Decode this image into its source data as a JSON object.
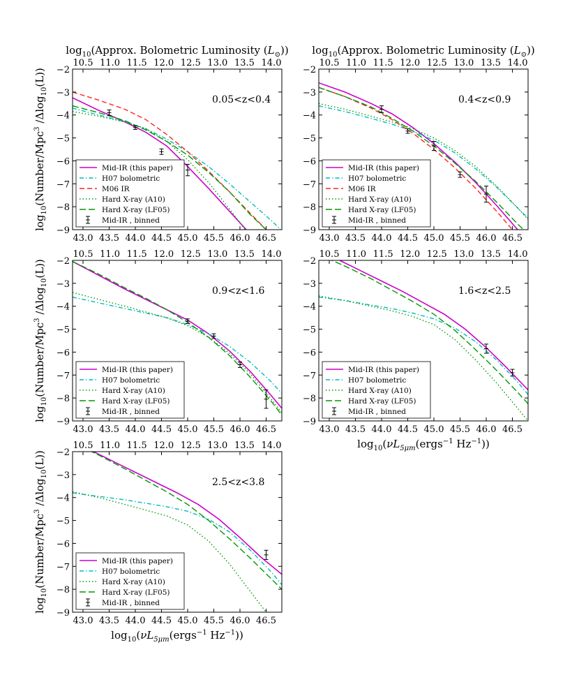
{
  "figure": {
    "top_axis_label": "log10(Approx. Bolometric Luminosity (L⊙))",
    "y_axis_label": "log10(Number/Mpc³ /Δlog10(L))",
    "bottom_axis_label": "log10(νL5μm(ergs⁻¹ Hz⁻¹))"
  },
  "chart_data": [
    {
      "type": "line",
      "panel": "0.05<z<0.4",
      "title": "0.05<z<0.4",
      "xlim": [
        42.8,
        46.8
      ],
      "ylim": [
        -9,
        -2
      ],
      "xticks": [
        43.0,
        43.5,
        44.0,
        44.5,
        45.0,
        45.5,
        46.0,
        46.5
      ],
      "yticks": [
        -2,
        -3,
        -4,
        -5,
        -6,
        -7,
        -8,
        -9
      ],
      "top_ticks": [
        10.5,
        11.0,
        11.5,
        12.0,
        12.5,
        13.0,
        13.5,
        14.0
      ],
      "legend": "lower-left",
      "series": [
        {
          "name": "Mid-IR (this paper)",
          "color": "#cc00cc",
          "style": "solid",
          "x": [
            42.8,
            43.3,
            43.8,
            44.2,
            44.6,
            45.0,
            45.4,
            45.8,
            46.2
          ],
          "y": [
            -3.25,
            -3.8,
            -4.3,
            -4.75,
            -5.35,
            -6.25,
            -7.2,
            -8.2,
            -9.2
          ]
        },
        {
          "name": "H07 bolometric",
          "color": "#00bbbb",
          "style": "dashdot",
          "x": [
            42.8,
            43.3,
            43.8,
            44.2,
            44.6,
            45.0,
            45.4,
            45.8,
            46.2,
            46.6,
            46.8
          ],
          "y": [
            -3.7,
            -4.0,
            -4.3,
            -4.6,
            -5.05,
            -5.6,
            -6.25,
            -7.0,
            -7.8,
            -8.6,
            -9.05
          ]
        },
        {
          "name": "M06 IR",
          "color": "#ff2222",
          "style": "dashed",
          "x": [
            42.8,
            43.3,
            43.8,
            44.2,
            44.6,
            45.0,
            45.4,
            45.8,
            46.2,
            46.5
          ],
          "y": [
            -3.0,
            -3.35,
            -3.75,
            -4.2,
            -4.85,
            -5.6,
            -6.45,
            -7.35,
            -8.3,
            -9.0
          ]
        },
        {
          "name": "Hard X-ray (A10)",
          "color": "#009900",
          "style": "dotted",
          "x": [
            42.8,
            43.3,
            43.8,
            44.2,
            44.6,
            45.0,
            45.4,
            45.8,
            46.1
          ],
          "y": [
            -3.85,
            -4.05,
            -4.3,
            -4.6,
            -5.15,
            -5.95,
            -6.95,
            -8.1,
            -9.0
          ]
        },
        {
          "name": "Hard X-ray (LF05)",
          "color": "#009900",
          "style": "longdash",
          "x": [
            42.8,
            43.3,
            43.8,
            44.2,
            44.6,
            45.0,
            45.4,
            45.8,
            46.2,
            46.5
          ],
          "y": [
            -3.6,
            -3.9,
            -4.25,
            -4.65,
            -5.15,
            -5.75,
            -6.5,
            -7.35,
            -8.35,
            -9.0
          ]
        },
        {
          "name": "Mid-IR , binned",
          "color": "#000000",
          "style": "errorbar",
          "x": [
            43.5,
            44.0,
            44.5,
            45.0
          ],
          "y": [
            -3.9,
            -4.55,
            -5.6,
            -6.4
          ],
          "err": [
            0.12,
            0.08,
            0.12,
            0.25
          ]
        }
      ]
    },
    {
      "type": "line",
      "panel": "0.4<z<0.9",
      "title": "0.4<z<0.9",
      "xlim": [
        42.8,
        46.8
      ],
      "ylim": [
        -9,
        -2
      ],
      "xticks": [
        43.0,
        43.5,
        44.0,
        44.5,
        45.0,
        45.5,
        46.0,
        46.5
      ],
      "yticks": [
        -2,
        -3,
        -4,
        -5,
        -6,
        -7,
        -8,
        -9
      ],
      "top_ticks": [
        10.5,
        11.0,
        11.5,
        12.0,
        12.5,
        13.0,
        13.5,
        14.0
      ],
      "legend": "lower-left",
      "series": [
        {
          "name": "Mid-IR (this paper)",
          "color": "#cc00cc",
          "style": "solid",
          "x": [
            42.8,
            43.3,
            43.8,
            44.2,
            44.6,
            45.0,
            45.4,
            45.8,
            46.2,
            46.6
          ],
          "y": [
            -2.6,
            -3.0,
            -3.5,
            -3.95,
            -4.55,
            -5.25,
            -6.05,
            -6.95,
            -7.95,
            -9.0
          ]
        },
        {
          "name": "H07 bolometric",
          "color": "#00bbbb",
          "style": "dashdot",
          "x": [
            42.8,
            43.3,
            43.8,
            44.2,
            44.6,
            45.0,
            45.4,
            45.8,
            46.2,
            46.6,
            46.8
          ],
          "y": [
            -3.6,
            -3.85,
            -4.15,
            -4.4,
            -4.7,
            -5.1,
            -5.65,
            -6.35,
            -7.15,
            -8.05,
            -8.5
          ]
        },
        {
          "name": "M06 IR",
          "color": "#ff2222",
          "style": "dashed",
          "x": [
            42.8,
            43.3,
            43.8,
            44.2,
            44.6,
            45.0,
            45.4,
            45.8,
            46.2,
            46.5
          ],
          "y": [
            -2.8,
            -3.2,
            -3.7,
            -4.2,
            -4.8,
            -5.5,
            -6.3,
            -7.2,
            -8.2,
            -9.0
          ]
        },
        {
          "name": "Hard X-ray (A10)",
          "color": "#009900",
          "style": "dotted",
          "x": [
            42.8,
            43.3,
            43.8,
            44.2,
            44.6,
            45.0,
            45.4,
            45.8,
            46.2,
            46.6,
            46.8
          ],
          "y": [
            -3.5,
            -3.75,
            -4.05,
            -4.3,
            -4.6,
            -5.0,
            -5.55,
            -6.25,
            -7.1,
            -8.05,
            -8.55
          ]
        },
        {
          "name": "Hard X-ray (LF05)",
          "color": "#009900",
          "style": "longdash",
          "x": [
            42.8,
            43.3,
            43.8,
            44.2,
            44.6,
            45.0,
            45.4,
            45.8,
            46.2,
            46.6,
            46.8
          ],
          "y": [
            -2.8,
            -3.2,
            -3.65,
            -4.15,
            -4.7,
            -5.35,
            -6.1,
            -6.9,
            -7.8,
            -8.75,
            -9.2
          ]
        },
        {
          "name": "Mid-IR , binned",
          "color": "#000000",
          "style": "errorbar",
          "x": [
            44.0,
            44.5,
            45.0,
            45.5,
            46.0
          ],
          "y": [
            -3.75,
            -4.7,
            -5.35,
            -6.6,
            -7.45
          ],
          "err": [
            0.15,
            0.1,
            0.2,
            0.12,
            0.35
          ]
        }
      ]
    },
    {
      "type": "line",
      "panel": "0.9<z<1.6",
      "title": "0.9<z<1.6",
      "xlim": [
        42.8,
        46.8
      ],
      "ylim": [
        -9,
        -2
      ],
      "xticks": [
        43.0,
        43.5,
        44.0,
        44.5,
        45.0,
        45.5,
        46.0,
        46.5
      ],
      "yticks": [
        -2,
        -3,
        -4,
        -5,
        -6,
        -7,
        -8,
        -9
      ],
      "top_ticks": [
        10.5,
        11.0,
        11.5,
        12.0,
        12.5,
        13.0,
        13.5,
        14.0
      ],
      "legend": "lower-left",
      "series": [
        {
          "name": "Mid-IR (this paper)",
          "color": "#cc00cc",
          "style": "solid",
          "x": [
            42.8,
            43.3,
            43.8,
            44.2,
            44.6,
            45.0,
            45.4,
            45.8,
            46.2,
            46.6,
            46.8
          ],
          "y": [
            -2.05,
            -2.65,
            -3.25,
            -3.7,
            -4.15,
            -4.6,
            -5.2,
            -5.95,
            -6.85,
            -7.9,
            -8.45
          ]
        },
        {
          "name": "H07 bolometric",
          "color": "#00bbbb",
          "style": "dashdot",
          "x": [
            42.8,
            43.3,
            43.8,
            44.2,
            44.6,
            45.0,
            45.4,
            45.8,
            46.2,
            46.6,
            46.8
          ],
          "y": [
            -3.6,
            -3.85,
            -4.1,
            -4.3,
            -4.5,
            -4.8,
            -5.2,
            -5.75,
            -6.45,
            -7.3,
            -7.8
          ]
        },
        {
          "name": "Hard X-ray (A10)",
          "color": "#009900",
          "style": "dotted",
          "x": [
            42.8,
            43.3,
            43.8,
            44.2,
            44.6,
            45.0,
            45.4,
            45.8,
            46.2,
            46.6,
            46.8
          ],
          "y": [
            -3.4,
            -3.7,
            -4.0,
            -4.25,
            -4.5,
            -4.85,
            -5.35,
            -6.05,
            -6.95,
            -8.05,
            -8.65
          ]
        },
        {
          "name": "Hard X-ray (LF05)",
          "color": "#009900",
          "style": "longdash",
          "x": [
            42.8,
            43.3,
            43.8,
            44.2,
            44.6,
            45.0,
            45.4,
            45.8,
            46.2,
            46.6,
            46.8
          ],
          "y": [
            -2.05,
            -2.6,
            -3.2,
            -3.65,
            -4.15,
            -4.7,
            -5.35,
            -6.15,
            -7.1,
            -8.15,
            -8.75
          ]
        },
        {
          "name": "Mid-IR , binned",
          "color": "#000000",
          "style": "errorbar",
          "x": [
            45.0,
            45.5,
            46.0,
            46.5
          ],
          "y": [
            -4.65,
            -5.3,
            -6.55,
            -8.05
          ],
          "err": [
            0.1,
            0.1,
            0.12,
            0.4
          ]
        }
      ]
    },
    {
      "type": "line",
      "panel": "1.6<z<2.5",
      "title": "1.6<z<2.5",
      "xlim": [
        42.8,
        46.8
      ],
      "ylim": [
        -9,
        -2
      ],
      "xticks": [
        43.0,
        43.5,
        44.0,
        44.5,
        45.0,
        45.5,
        46.0,
        46.5
      ],
      "yticks": [
        -2,
        -3,
        -4,
        -5,
        -6,
        -7,
        -8,
        -9
      ],
      "top_ticks": [
        10.5,
        11.0,
        11.5,
        12.0,
        12.5,
        13.0,
        13.5,
        14.0
      ],
      "legend": "lower-left",
      "series": [
        {
          "name": "Mid-IR (this paper)",
          "color": "#cc00cc",
          "style": "solid",
          "x": [
            43.2,
            43.6,
            44.0,
            44.4,
            44.8,
            45.2,
            45.6,
            46.0,
            46.4,
            46.8
          ],
          "y": [
            -2.0,
            -2.45,
            -2.9,
            -3.35,
            -3.85,
            -4.35,
            -5.0,
            -5.8,
            -6.7,
            -7.65
          ]
        },
        {
          "name": "H07 bolometric",
          "color": "#00bbbb",
          "style": "dashdot",
          "x": [
            42.8,
            43.3,
            43.8,
            44.2,
            44.6,
            45.0,
            45.4,
            45.8,
            46.2,
            46.6,
            46.8
          ],
          "y": [
            -3.6,
            -3.75,
            -3.95,
            -4.1,
            -4.3,
            -4.55,
            -4.95,
            -5.55,
            -6.35,
            -7.3,
            -7.85
          ]
        },
        {
          "name": "Hard X-ray (A10)",
          "color": "#009900",
          "style": "dotted",
          "x": [
            42.8,
            43.3,
            43.8,
            44.2,
            44.6,
            45.0,
            45.4,
            45.8,
            46.2,
            46.6,
            46.8
          ],
          "y": [
            -3.55,
            -3.75,
            -4.0,
            -4.2,
            -4.45,
            -4.8,
            -5.45,
            -6.35,
            -7.35,
            -8.45,
            -9.0
          ]
        },
        {
          "name": "Hard X-ray (LF05)",
          "color": "#009900",
          "style": "longdash",
          "x": [
            42.8,
            43.3,
            43.8,
            44.2,
            44.6,
            45.0,
            45.4,
            45.8,
            46.2,
            46.6,
            46.8
          ],
          "y": [
            -1.75,
            -2.25,
            -2.8,
            -3.3,
            -3.8,
            -4.35,
            -5.05,
            -5.9,
            -6.8,
            -7.75,
            -8.25
          ]
        },
        {
          "name": "Mid-IR , binned",
          "color": "#000000",
          "style": "errorbar",
          "x": [
            46.0,
            46.5
          ],
          "y": [
            -5.85,
            -6.9
          ],
          "err": [
            0.2,
            0.15
          ]
        }
      ]
    },
    {
      "type": "line",
      "panel": "2.5<z<3.8",
      "title": "2.5<z<3.8",
      "xlim": [
        42.8,
        46.8
      ],
      "ylim": [
        -9,
        -2
      ],
      "xticks": [
        43.0,
        43.5,
        44.0,
        44.5,
        45.0,
        45.5,
        46.0,
        46.5
      ],
      "yticks": [
        -2,
        -3,
        -4,
        -5,
        -6,
        -7,
        -8,
        -9
      ],
      "top_ticks": [
        10.5,
        11.0,
        11.5,
        12.0,
        12.5,
        13.0,
        13.5,
        14.0
      ],
      "legend": "lower-left",
      "series": [
        {
          "name": "Mid-IR (this paper)",
          "color": "#cc00cc",
          "style": "solid",
          "x": [
            43.2,
            43.6,
            44.0,
            44.4,
            44.8,
            45.2,
            45.6,
            46.0,
            46.4,
            46.8
          ],
          "y": [
            -2.0,
            -2.45,
            -2.9,
            -3.35,
            -3.8,
            -4.3,
            -4.95,
            -5.75,
            -6.6,
            -7.35
          ]
        },
        {
          "name": "H07 bolometric",
          "color": "#00bbbb",
          "style": "dashdot",
          "x": [
            42.8,
            43.3,
            43.8,
            44.2,
            44.6,
            45.0,
            45.4,
            45.8,
            46.2,
            46.6,
            46.8
          ],
          "y": [
            -3.8,
            -3.95,
            -4.1,
            -4.25,
            -4.4,
            -4.6,
            -4.95,
            -5.5,
            -6.3,
            -7.25,
            -7.8
          ]
        },
        {
          "name": "Hard X-ray (A10)",
          "color": "#009900",
          "style": "dotted",
          "x": [
            42.8,
            43.3,
            43.8,
            44.2,
            44.6,
            45.0,
            45.4,
            45.8,
            46.2,
            46.5
          ],
          "y": [
            -3.75,
            -4.0,
            -4.3,
            -4.55,
            -4.8,
            -5.2,
            -5.9,
            -6.9,
            -8.1,
            -9.0
          ]
        },
        {
          "name": "Hard X-ray (LF05)",
          "color": "#009900",
          "style": "longdash",
          "x": [
            42.8,
            43.3,
            43.8,
            44.2,
            44.6,
            45.0,
            45.4,
            45.8,
            46.2,
            46.6,
            46.8
          ],
          "y": [
            -1.6,
            -2.15,
            -2.75,
            -3.25,
            -3.75,
            -4.3,
            -5.0,
            -5.8,
            -6.65,
            -7.55,
            -8.0
          ]
        },
        {
          "name": "Mid-IR , binned",
          "color": "#000000",
          "style": "errorbar",
          "x": [
            46.5
          ],
          "y": [
            -6.5
          ],
          "err": [
            0.2
          ]
        }
      ]
    }
  ]
}
